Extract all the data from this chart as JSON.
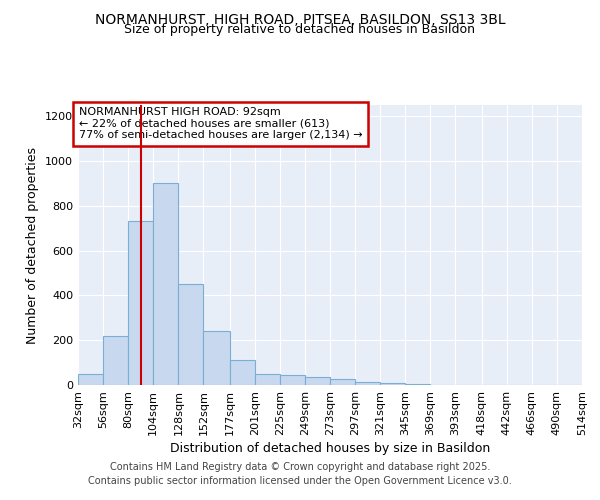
{
  "title1": "NORMANHURST, HIGH ROAD, PITSEA, BASILDON, SS13 3BL",
  "title2": "Size of property relative to detached houses in Basildon",
  "xlabel": "Distribution of detached houses by size in Basildon",
  "ylabel": "Number of detached properties",
  "bins": [
    "32sqm",
    "56sqm",
    "80sqm",
    "104sqm",
    "128sqm",
    "152sqm",
    "177sqm",
    "201sqm",
    "225sqm",
    "249sqm",
    "273sqm",
    "297sqm",
    "321sqm",
    "345sqm",
    "369sqm",
    "393sqm",
    "418sqm",
    "442sqm",
    "466sqm",
    "490sqm",
    "514sqm"
  ],
  "bin_edges": [
    32,
    56,
    80,
    104,
    128,
    152,
    177,
    201,
    225,
    249,
    273,
    297,
    321,
    345,
    369,
    393,
    418,
    442,
    466,
    490,
    514
  ],
  "bar_heights": [
    50,
    220,
    730,
    900,
    450,
    240,
    110,
    50,
    45,
    35,
    25,
    15,
    10,
    4,
    2,
    1,
    1,
    0,
    0,
    0
  ],
  "bar_color": "#c8d9ef",
  "bar_edge_color": "#7aafd4",
  "property_size": 92,
  "red_line_color": "#cc0000",
  "annotation_title": "NORMANHURST HIGH ROAD: 92sqm",
  "annotation_line2": "← 22% of detached houses are smaller (613)",
  "annotation_line3": "77% of semi-detached houses are larger (2,134) →",
  "annotation_box_color": "#cc0000",
  "ylim": [
    0,
    1250
  ],
  "yticks": [
    0,
    200,
    400,
    600,
    800,
    1000,
    1200
  ],
  "footer1": "Contains HM Land Registry data © Crown copyright and database right 2025.",
  "footer2": "Contains public sector information licensed under the Open Government Licence v3.0.",
  "bg_color": "#ffffff",
  "plot_bg_color": "#e8eef8",
  "grid_color": "#ffffff",
  "title_fontsize": 10,
  "subtitle_fontsize": 9,
  "axis_label_fontsize": 9,
  "tick_fontsize": 8,
  "annotation_fontsize": 8,
  "footer_fontsize": 7
}
